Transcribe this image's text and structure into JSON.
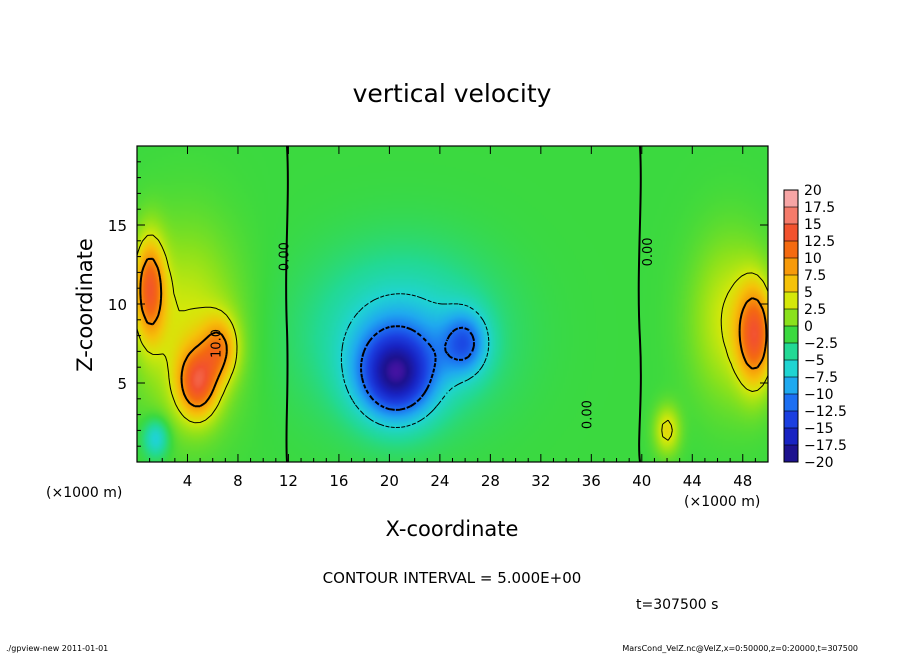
{
  "chart_data": {
    "type": "heatmap",
    "title": "vertical velocity",
    "xlabel": "X-coordinate",
    "ylabel": "Z-coordinate",
    "x_unit_left": "(×1000 m)",
    "x_unit_right": "(×1000 m)",
    "xlim": [
      0,
      50
    ],
    "ylim": [
      0,
      20
    ],
    "x_ticks": [
      4,
      8,
      12,
      16,
      20,
      24,
      28,
      32,
      36,
      40,
      44,
      48
    ],
    "y_ticks": [
      5,
      10,
      15
    ],
    "contour_interval_text": "CONTOUR INTERVAL = 5.000E+00",
    "time_text": "t=307500 s",
    "footer_left": "./gpview-new  2011-01-01",
    "footer_right": "MarsCond_VelZ.nc@VelZ,x=0:50000,z=0:20000,t=307500",
    "contour_labels": [
      {
        "text": "0.00",
        "x": 12.0,
        "z": 13.0
      },
      {
        "text": "10.0",
        "x": 6.6,
        "z": 7.5
      },
      {
        "text": "0.00",
        "x": 40.8,
        "z": 13.3
      },
      {
        "text": "0.00",
        "x": 36.0,
        "z": 3.0
      }
    ],
    "colorbar": {
      "labels": [
        "20",
        "17.5",
        "15",
        "12.5",
        "10",
        "7.5",
        "5",
        "2.5",
        "0",
        "−2.5",
        "−5",
        "−7.5",
        "−10",
        "−12.5",
        "−15",
        "−17.5",
        "−20"
      ],
      "colors": [
        "#f7a5a5",
        "#f57b6b",
        "#f2522e",
        "#f46a10",
        "#f79a0a",
        "#f5c209",
        "#d5e80a",
        "#8ae11c",
        "#3bd93f",
        "#22d994",
        "#1fd4d2",
        "#1fa9ef",
        "#1c6ff2",
        "#1b3fe0",
        "#1823c2",
        "#1d128f",
        "#6a14b5"
      ]
    },
    "features": [
      {
        "x": 20.5,
        "z": 5.5,
        "sx": 3.0,
        "sz": 2.8,
        "value": -14
      },
      {
        "x": 26.0,
        "z": 7.5,
        "sx": 1.8,
        "sz": 2.0,
        "value": -8
      },
      {
        "x": 21.0,
        "z": 8.0,
        "sx": 7.0,
        "sz": 5.0,
        "value": -6
      },
      {
        "x": 4.8,
        "z": 5.0,
        "sx": 1.6,
        "sz": 2.2,
        "value": 12
      },
      {
        "x": 6.6,
        "z": 7.2,
        "sx": 1.4,
        "sz": 2.0,
        "value": 8
      },
      {
        "x": 1.0,
        "z": 11.0,
        "sx": 1.2,
        "sz": 3.2,
        "value": 12
      },
      {
        "x": 4.0,
        "z": 8.5,
        "sx": 4.0,
        "sz": 6.0,
        "value": 5
      },
      {
        "x": 49.0,
        "z": 8.0,
        "sx": 1.4,
        "sz": 3.2,
        "value": 12
      },
      {
        "x": 47.0,
        "z": 9.0,
        "sx": 3.0,
        "sz": 5.0,
        "value": 5
      },
      {
        "x": 42.0,
        "z": 2.0,
        "sx": 1.0,
        "sz": 1.5,
        "value": 6
      },
      {
        "x": 1.5,
        "z": 1.5,
        "sx": 1.0,
        "sz": 1.2,
        "value": -6
      }
    ]
  }
}
